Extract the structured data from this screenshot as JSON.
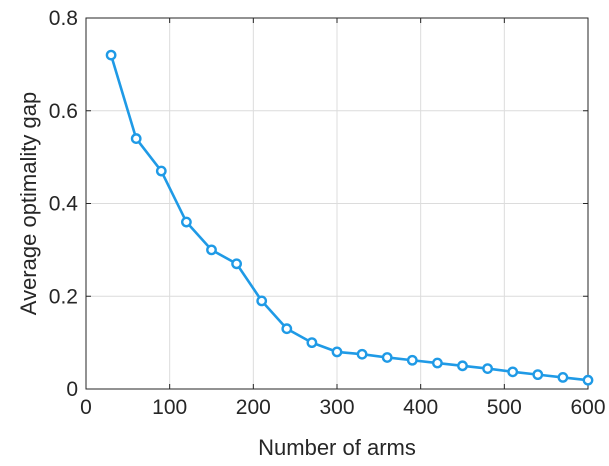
{
  "chart_data": {
    "type": "line",
    "title": "",
    "xlabel": "Number of arms",
    "ylabel": "Average optimality gap",
    "xlim": [
      0,
      600
    ],
    "ylim": [
      0,
      0.8
    ],
    "xticks": [
      0,
      100,
      200,
      300,
      400,
      500,
      600
    ],
    "yticks": [
      0,
      0.2,
      0.4,
      0.6,
      0.8
    ],
    "xtick_labels": [
      "0",
      "100",
      "200",
      "300",
      "400",
      "500",
      "600"
    ],
    "ytick_labels": [
      "0",
      "0.2",
      "0.4",
      "0.6",
      "0.8"
    ],
    "grid": true,
    "legend": "none",
    "series": [
      {
        "color": "#1f9ae6",
        "marker": "circle",
        "x": [
          30,
          60,
          90,
          120,
          150,
          180,
          210,
          240,
          270,
          300,
          330,
          360,
          390,
          420,
          450,
          480,
          510,
          540,
          570,
          600
        ],
        "y": [
          0.72,
          0.54,
          0.47,
          0.36,
          0.3,
          0.27,
          0.19,
          0.13,
          0.1,
          0.08,
          0.075,
          0.068,
          0.062,
          0.056,
          0.05,
          0.044,
          0.037,
          0.031,
          0.025,
          0.019
        ]
      }
    ]
  }
}
